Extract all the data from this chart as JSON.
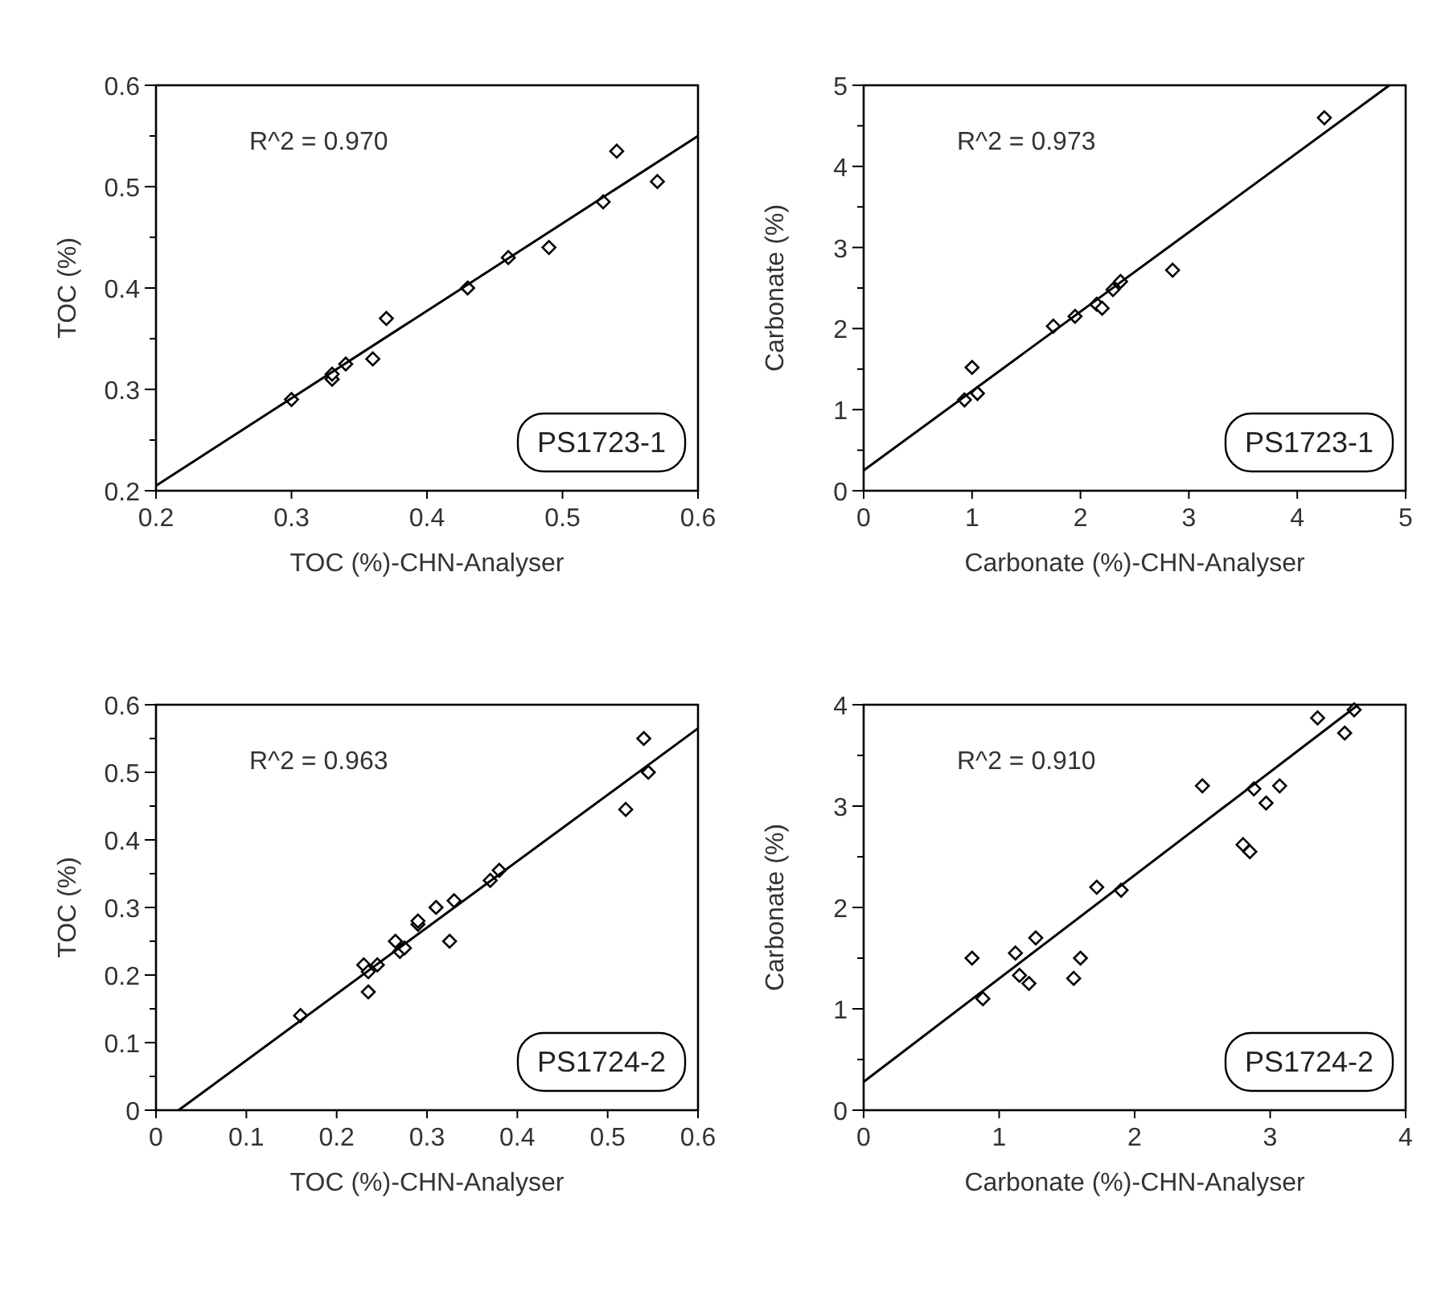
{
  "chart_data": [
    {
      "type": "scatter",
      "xlabel": "TOC (%)-CHN-Analyser",
      "ylabel": "TOC (%)",
      "annotations": [
        "R^2 = 0.970",
        "PS1723-1"
      ],
      "xlim": [
        0.2,
        0.6
      ],
      "ylim": [
        0.2,
        0.6
      ],
      "xticks": [
        0.2,
        0.3,
        0.4,
        0.5,
        0.6
      ],
      "yticks": [
        0.2,
        {
          "value": 0.25,
          "label": null
        },
        0.3,
        {
          "value": 0.35,
          "label": null
        },
        0.4,
        {
          "value": 0.45,
          "label": null
        },
        0.5,
        {
          "value": 0.55,
          "label": null
        },
        0.6
      ],
      "series": [
        {
          "color": "#000000",
          "marker": "diamond",
          "x": [
            0.3,
            0.33,
            0.33,
            0.34,
            0.36,
            0.37,
            0.43,
            0.46,
            0.49,
            0.53,
            0.54,
            0.57
          ],
          "values": [
            0.29,
            0.31,
            0.315,
            0.325,
            0.33,
            0.37,
            0.4,
            0.43,
            0.44,
            0.485,
            0.535,
            0.505
          ]
        },
        {
          "type": "line",
          "color": "#000000",
          "x": [
            0.2,
            0.6
          ],
          "values": [
            0.205,
            0.55
          ]
        }
      ]
    },
    {
      "type": "scatter",
      "xlabel": "Carbonate (%)-CHN-Analyser",
      "ylabel": "Carbonate (%)",
      "annotations": [
        "R^2 = 0.973",
        "PS1723-1"
      ],
      "xlim": [
        0,
        5
      ],
      "ylim": [
        0,
        5
      ],
      "xticks": [
        0,
        1,
        2,
        3,
        4,
        5
      ],
      "yticks": [
        0,
        {
          "value": 0.5,
          "label": null
        },
        1,
        {
          "value": 1.5,
          "label": null
        },
        2,
        {
          "value": 2.5,
          "label": null
        },
        3,
        {
          "value": 3.5,
          "label": null
        },
        4,
        {
          "value": 4.5,
          "label": null
        },
        5
      ],
      "series": [
        {
          "color": "#000000",
          "marker": "diamond",
          "x": [
            0.93,
            1.0,
            1.05,
            1.75,
            1.95,
            2.15,
            2.2,
            2.3,
            2.37,
            2.85,
            4.25
          ],
          "values": [
            1.12,
            1.52,
            1.2,
            2.03,
            2.15,
            2.3,
            2.25,
            2.48,
            2.58,
            2.72,
            4.6
          ]
        },
        {
          "type": "line",
          "color": "#000000",
          "x": [
            0,
            4.85
          ],
          "values": [
            0.25,
            5
          ]
        }
      ]
    },
    {
      "type": "scatter",
      "xlabel": "TOC (%)-CHN-Analyser",
      "ylabel": "TOC (%)",
      "annotations": [
        "R^2 = 0.963",
        "PS1724-2"
      ],
      "xlim": [
        0,
        0.6
      ],
      "ylim": [
        0,
        0.6
      ],
      "xticks": [
        0,
        0.1,
        0.2,
        0.3,
        0.4,
        0.5,
        0.6
      ],
      "yticks": [
        0,
        {
          "value": 0.05,
          "label": null
        },
        0.1,
        {
          "value": 0.15,
          "label": null
        },
        0.2,
        {
          "value": 0.25,
          "label": null
        },
        0.3,
        {
          "value": 0.35,
          "label": null
        },
        0.4,
        {
          "value": 0.45,
          "label": null
        },
        0.5,
        {
          "value": 0.55,
          "label": null
        },
        0.6
      ],
      "series": [
        {
          "color": "#000000",
          "marker": "diamond",
          "x": [
            0.16,
            0.23,
            0.235,
            0.235,
            0.245,
            0.265,
            0.27,
            0.275,
            0.29,
            0.29,
            0.31,
            0.325,
            0.33,
            0.37,
            0.38,
            0.52,
            0.54,
            0.545
          ],
          "values": [
            0.14,
            0.215,
            0.175,
            0.205,
            0.215,
            0.25,
            0.235,
            0.24,
            0.275,
            0.28,
            0.3,
            0.25,
            0.31,
            0.34,
            0.355,
            0.445,
            0.55,
            0.5
          ]
        },
        {
          "type": "line",
          "color": "#000000",
          "x": [
            0.025,
            0.6
          ],
          "values": [
            0,
            0.565
          ]
        }
      ]
    },
    {
      "type": "scatter",
      "xlabel": "Carbonate (%)-CHN-Analyser",
      "ylabel": "Carbonate (%)",
      "annotations": [
        "R^2 = 0.910",
        "PS1724-2"
      ],
      "xlim": [
        0,
        4
      ],
      "ylim": [
        0,
        4
      ],
      "xticks": [
        0,
        1,
        2,
        3,
        4
      ],
      "yticks": [
        0,
        {
          "value": 0.5,
          "label": null
        },
        1,
        {
          "value": 1.5,
          "label": null
        },
        2,
        {
          "value": 2.5,
          "label": null
        },
        3,
        {
          "value": 3.5,
          "label": null
        },
        4
      ],
      "series": [
        {
          "color": "#000000",
          "marker": "diamond",
          "x": [
            0.8,
            0.88,
            1.12,
            1.15,
            1.22,
            1.27,
            1.55,
            1.6,
            1.72,
            1.9,
            2.5,
            2.8,
            2.85,
            2.88,
            2.97,
            3.07,
            3.35,
            3.55,
            3.62
          ],
          "values": [
            1.5,
            1.1,
            1.55,
            1.33,
            1.25,
            1.7,
            1.3,
            1.5,
            2.2,
            2.17,
            3.2,
            2.62,
            2.55,
            3.17,
            3.03,
            3.2,
            3.87,
            3.72,
            3.95
          ]
        },
        {
          "type": "line",
          "color": "#000000",
          "x": [
            0,
            3.65
          ],
          "values": [
            0.28,
            4
          ]
        }
      ]
    }
  ]
}
